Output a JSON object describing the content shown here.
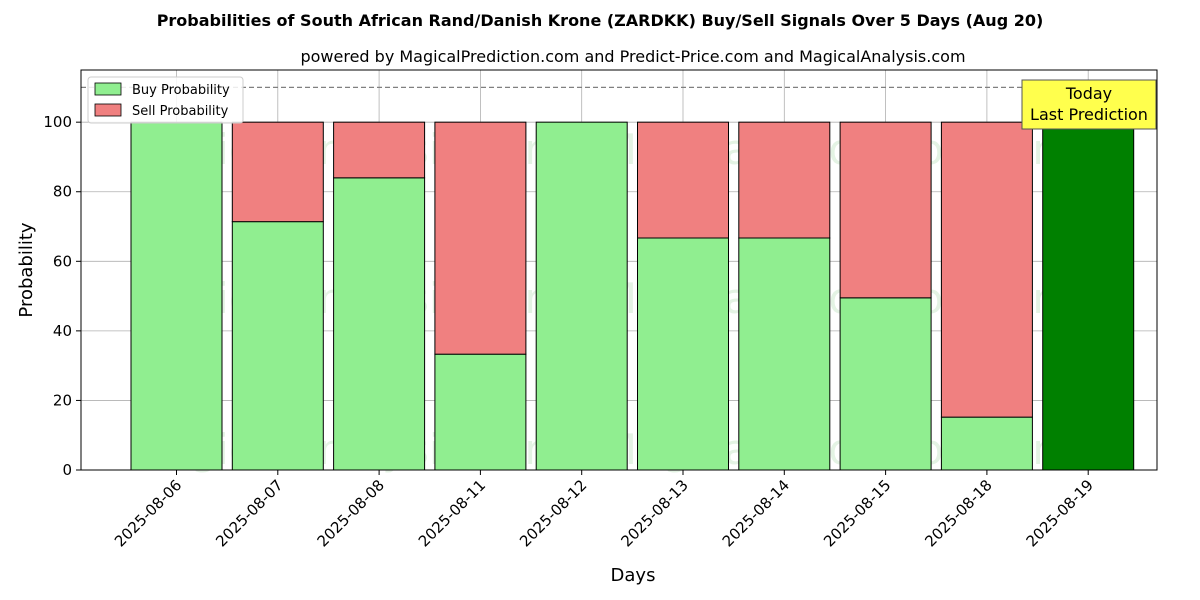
{
  "chart_data": {
    "type": "bar",
    "title": "Probabilities of South African Rand/Danish Krone (ZARDKK) Buy/Sell Signals Over 5 Days (Aug 20)",
    "subtitle": "powered by MagicalPrediction.com and Predict-Price.com and MagicalAnalysis.com",
    "xlabel": "Days",
    "ylabel": "Probability",
    "ylim": [
      0,
      115
    ],
    "yticks": [
      0,
      20,
      40,
      60,
      80,
      100
    ],
    "grid": true,
    "stacked": true,
    "legend_position": "top-left",
    "categories": [
      "2025-08-06",
      "2025-08-07",
      "2025-08-08",
      "2025-08-11",
      "2025-08-12",
      "2025-08-13",
      "2025-08-14",
      "2025-08-15",
      "2025-08-18",
      "2025-08-19"
    ],
    "series": [
      {
        "name": "Buy Probability",
        "color": "#90ee90",
        "values": [
          100,
          71.4,
          84,
          33.3,
          100,
          66.7,
          66.7,
          49.5,
          15.2,
          100
        ]
      },
      {
        "name": "Sell Probability",
        "color": "#f08080",
        "values": [
          0,
          28.6,
          16,
          66.7,
          0,
          33.3,
          33.3,
          50.5,
          84.8,
          0
        ]
      }
    ],
    "highlight": {
      "index": 9,
      "color": "#008000"
    },
    "reference_line": {
      "y": 110,
      "style": "dashed",
      "color": "#808080"
    },
    "annotation": {
      "lines": [
        "Today",
        "Last Prediction"
      ],
      "background": "#ffff4d"
    },
    "watermarks": [
      "MagicalAnalysis.com",
      "MagicalPrediction.com"
    ]
  }
}
